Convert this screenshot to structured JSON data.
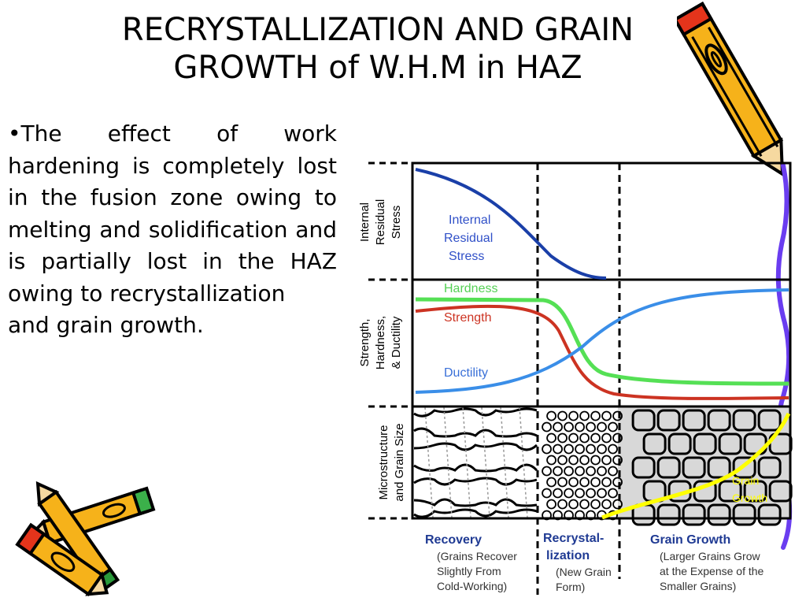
{
  "slide": {
    "title_line1": "RECRYSTALLIZATION AND GRAIN",
    "title_line2": "GROWTH of W.H.M in HAZ",
    "bullet_text": "•The effect of work hardening is completely lost in the fusion zone owing to melting and solidification and is partially lost in the HAZ owing to recrystallization",
    "bullet_last": "and grain growth."
  },
  "diagram": {
    "panels": {
      "top": [
        "Internal",
        "Residual",
        "Stress"
      ],
      "middle": [
        "Strength,",
        "Hardness,",
        "& Ductility"
      ],
      "bottom": [
        "Microstructure",
        "and Grain Size"
      ]
    },
    "curve_labels": {
      "stress": [
        "Internal",
        "Residual",
        "Stress"
      ],
      "hardness": "Hardness",
      "strength": "Strength",
      "ductility": "Ductility",
      "grain_growth": [
        "Grain",
        "Growth"
      ]
    },
    "stages": [
      {
        "title": "Recovery",
        "desc": [
          "(Grains Recover",
          "Slightly From",
          "Cold-Working)"
        ]
      },
      {
        "title": "Recrystal-",
        "title2": "lization",
        "desc": [
          "(New Grain",
          "Form)"
        ]
      },
      {
        "title": "Grain Growth",
        "desc": [
          "(Larger Grains Grow",
          "at the Expense of the",
          "Smaller Grains)"
        ]
      }
    ],
    "colors": {
      "stress": "#1a3fa8",
      "hardness": "#55e055",
      "strength": "#cc3322",
      "ductility": "#3a8ee8",
      "grain_growth": "#ffff00",
      "stage_label": "#1f3a93",
      "stage_desc": "#333333"
    },
    "icons": [
      "crayon-orange-icon",
      "crayon-yellow-icon",
      "crayon-red-icon"
    ]
  }
}
